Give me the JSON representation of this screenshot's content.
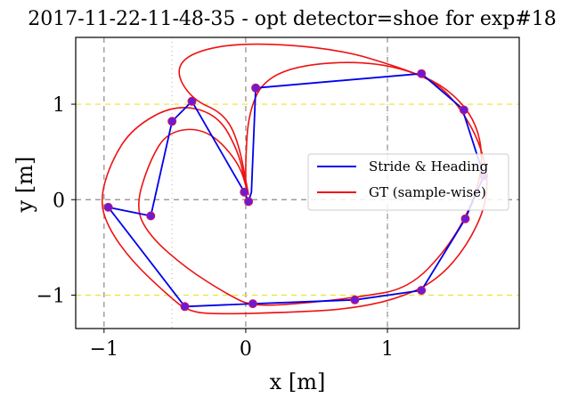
{
  "chart_data": {
    "type": "line",
    "title": "2017-11-22-11-48-35 - opt detector=shoe for exp#18",
    "xlabel": "x [m]",
    "ylabel": "y [m]",
    "xlim": [
      -1.2,
      1.93
    ],
    "ylim": [
      -1.35,
      1.7
    ],
    "x_ticks": [
      -1,
      0,
      1
    ],
    "y_ticks": [
      -1,
      0,
      1
    ],
    "x_tick_labels": [
      "−1",
      "0",
      "1"
    ],
    "y_tick_labels": [
      "−1",
      "0",
      "1"
    ],
    "grid": true,
    "legend_position": "right",
    "colors": {
      "stride": "#0000ee",
      "gt": "#ee1111",
      "marker": "#6a1bd6",
      "gridline": "#8a8a8a",
      "yellow_line": "#e6e62e",
      "dot_gray": "#b0b0b0"
    },
    "series": [
      {
        "name": "Stride & Heading",
        "style": "line-markers",
        "x": [
          0.02,
          -0.01,
          -0.38,
          -0.52,
          -0.67,
          -0.97,
          -0.43,
          0.05,
          0.77,
          1.24,
          1.55,
          1.68,
          1.53,
          1.54,
          1.24,
          0.07,
          0.04,
          0.02
        ],
        "y": [
          -0.02,
          0.08,
          1.03,
          0.82,
          -0.17,
          -0.08,
          -1.12,
          -1.09,
          -1.05,
          -0.95,
          -0.2,
          0.25,
          0.94,
          0.94,
          1.32,
          1.17,
          0.08,
          -0.02
        ],
        "marker_points": [
          [
            0.02,
            -0.02
          ],
          [
            -0.01,
            0.08
          ],
          [
            -0.38,
            1.03
          ],
          [
            -0.52,
            0.82
          ],
          [
            -0.67,
            -0.17
          ],
          [
            -0.97,
            -0.08
          ],
          [
            -0.43,
            -1.12
          ],
          [
            0.05,
            -1.09
          ],
          [
            0.77,
            -1.05
          ],
          [
            1.24,
            -0.95
          ],
          [
            1.55,
            -0.2
          ],
          [
            1.68,
            0.25
          ],
          [
            1.54,
            0.94
          ],
          [
            1.24,
            1.32
          ],
          [
            0.07,
            1.17
          ]
        ]
      },
      {
        "name": "GT (sample-wise)",
        "style": "line",
        "loops": [
          [
            [
              0.0,
              0.15
            ],
            [
              -0.05,
              0.5
            ],
            [
              -0.2,
              0.9
            ],
            [
              -0.5,
              1.0
            ],
            [
              -0.8,
              0.75
            ],
            [
              -0.95,
              0.4
            ],
            [
              -1.03,
              0.0
            ],
            [
              -0.97,
              -0.3
            ],
            [
              -0.8,
              -0.65
            ],
            [
              -0.55,
              -1.0
            ],
            [
              -0.4,
              -1.18
            ],
            [
              -0.15,
              -1.2
            ],
            [
              0.3,
              -1.18
            ],
            [
              0.7,
              -1.15
            ],
            [
              1.05,
              -1.05
            ],
            [
              1.35,
              -0.85
            ],
            [
              1.58,
              -0.45
            ],
            [
              1.72,
              0.05
            ],
            [
              1.67,
              0.55
            ],
            [
              1.5,
              1.0
            ],
            [
              1.3,
              1.28
            ],
            [
              0.9,
              1.45
            ],
            [
              0.4,
              1.42
            ],
            [
              0.12,
              1.25
            ],
            [
              0.02,
              0.9
            ],
            [
              0.0,
              0.45
            ],
            [
              0.0,
              0.15
            ]
          ],
          [
            [
              0.02,
              0.05
            ],
            [
              -0.05,
              0.4
            ],
            [
              -0.28,
              0.75
            ],
            [
              -0.55,
              0.72
            ],
            [
              -0.68,
              0.4
            ],
            [
              -0.78,
              -0.08
            ],
            [
              -0.68,
              -0.38
            ],
            [
              -0.42,
              -0.72
            ],
            [
              -0.12,
              -1.0
            ],
            [
              0.05,
              -1.12
            ],
            [
              0.45,
              -1.08
            ],
            [
              0.8,
              -1.02
            ],
            [
              1.15,
              -0.93
            ],
            [
              1.42,
              -0.52
            ],
            [
              1.6,
              -0.05
            ],
            [
              1.68,
              0.4
            ],
            [
              1.62,
              0.85
            ],
            [
              1.4,
              1.2
            ],
            [
              1.1,
              1.38
            ],
            [
              0.65,
              1.58
            ],
            [
              0.0,
              1.65
            ],
            [
              -0.38,
              1.55
            ],
            [
              -0.5,
              1.35
            ],
            [
              -0.38,
              1.05
            ],
            [
              -0.15,
              0.9
            ],
            [
              -0.05,
              0.6
            ],
            [
              0.02,
              0.05
            ]
          ]
        ]
      }
    ]
  }
}
